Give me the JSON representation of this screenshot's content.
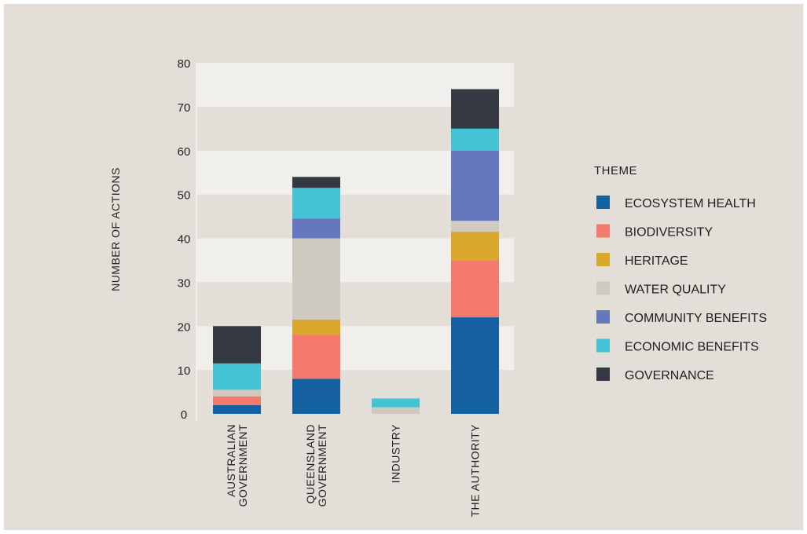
{
  "chart_data": {
    "type": "bar",
    "stacked": true,
    "categories": [
      [
        "AUSTRALIAN",
        "GOVERNMENT"
      ],
      [
        "QUEENSLAND",
        "GOVERNMENT"
      ],
      [
        "INDUSTRY"
      ],
      [
        "THE AUTHORITY"
      ]
    ],
    "ylabel": "NUMBER OF ACTIONS",
    "ylim": [
      0,
      80
    ],
    "yticks": [
      0,
      10,
      20,
      30,
      40,
      50,
      60,
      70,
      80
    ],
    "legend_title": "THEME",
    "legend_position": "right",
    "series": [
      {
        "name": "ECOSYSTEM HEALTH",
        "color": "#1560a0",
        "values": [
          2,
          8,
          0,
          22
        ]
      },
      {
        "name": "BIODIVERSITY",
        "color": "#f47a6d",
        "values": [
          2,
          10,
          0,
          13
        ]
      },
      {
        "name": "HERITAGE",
        "color": "#d9a72b",
        "values": [
          0,
          3.5,
          0,
          6.5
        ]
      },
      {
        "name": "WATER QUALITY",
        "color": "#cfcabf",
        "values": [
          1.5,
          18.5,
          1.5,
          2.5
        ]
      },
      {
        "name": "COMMUNITY BENEFITS",
        "color": "#6777bd",
        "values": [
          0,
          4.5,
          0,
          16
        ]
      },
      {
        "name": "ECONOMIC BENEFITS",
        "color": "#43c3d3",
        "values": [
          6,
          7,
          2,
          5
        ]
      },
      {
        "name": "GOVERNANCE",
        "color": "#353943",
        "values": [
          8.5,
          2.5,
          0,
          9
        ]
      }
    ],
    "band_colors": [
      "#f1efec",
      "#e3ded8"
    ]
  }
}
